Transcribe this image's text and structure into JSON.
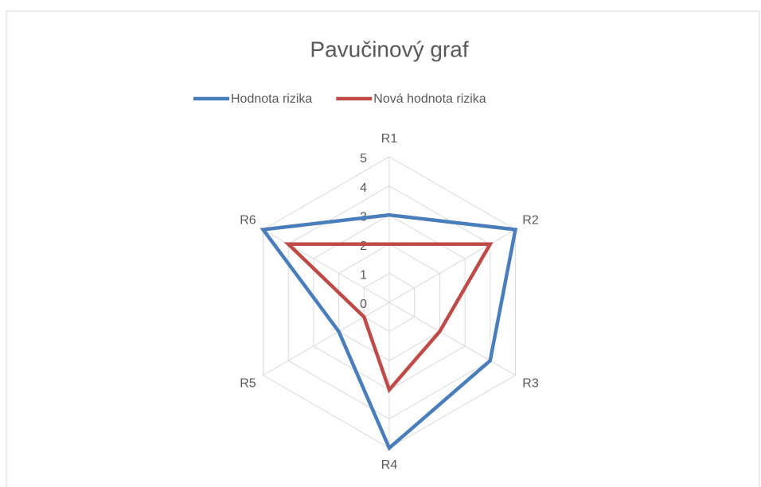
{
  "chart_data": {
    "type": "radar",
    "title": "Pavučinový graf",
    "categories": [
      "R1",
      "R2",
      "R3",
      "R4",
      "R5",
      "R6"
    ],
    "series": [
      {
        "name": "Hodnota rizika",
        "color": "#4a7ebb",
        "values": [
          3,
          5,
          4,
          5,
          2,
          5
        ]
      },
      {
        "name": "Nová hodnota rizika",
        "color": "#be4b48",
        "values": [
          2,
          4,
          2,
          3,
          1,
          4
        ]
      }
    ],
    "ylim": [
      0,
      5
    ],
    "yticks": [
      0,
      1,
      2,
      3,
      4,
      5
    ],
    "grid": true,
    "legend": "top"
  }
}
